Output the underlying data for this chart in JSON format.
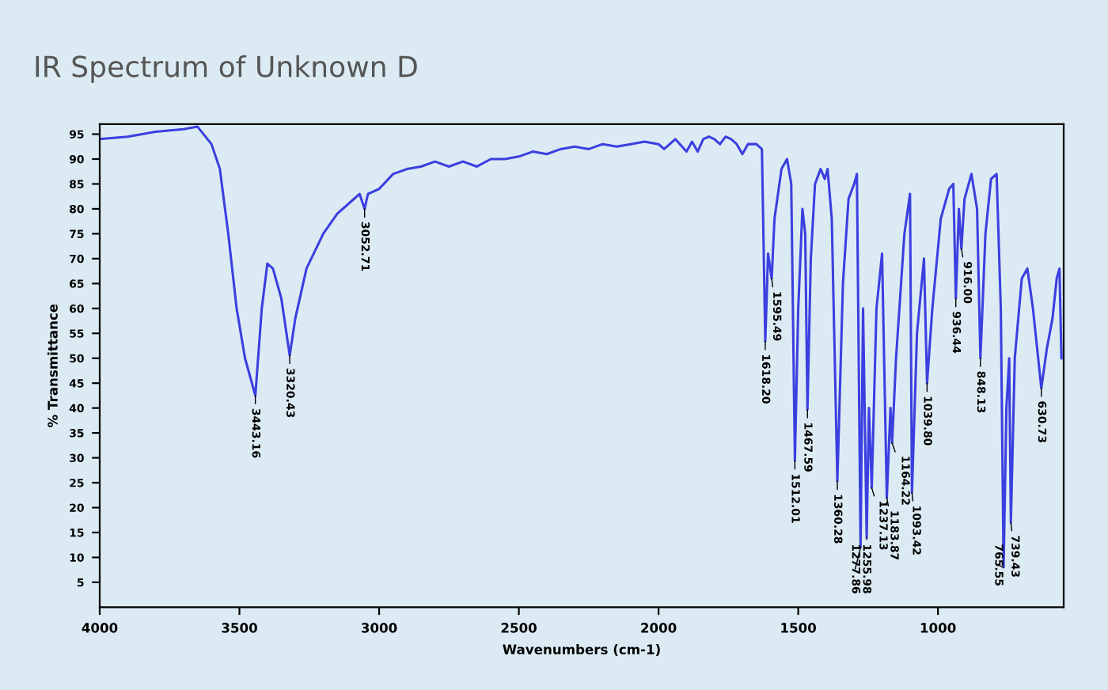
{
  "chart_data": {
    "type": "line",
    "title": "IR Spectrum of Unknown D",
    "xlabel": "Wavenumbers (cm-1)",
    "ylabel": "% Transmittance",
    "xlim": [
      4000,
      550
    ],
    "xticks": [
      4000,
      3500,
      3000,
      2500,
      2000,
      1500,
      1000
    ],
    "ylim": [
      0,
      97
    ],
    "yticks": [
      5,
      10,
      15,
      20,
      25,
      30,
      35,
      40,
      45,
      50,
      55,
      60,
      65,
      70,
      75,
      80,
      85,
      90,
      95
    ],
    "grid": false,
    "legend": false,
    "marker": "none",
    "line_style": "solid",
    "series": [
      {
        "color": "#3b3fe0",
        "x": [
          4000,
          3900,
          3800,
          3700,
          3650,
          3600,
          3570,
          3540,
          3510,
          3480,
          3443,
          3420,
          3400,
          3380,
          3350,
          3320,
          3300,
          3260,
          3200,
          3150,
          3100,
          3070,
          3052,
          3040,
          3000,
          2950,
          2900,
          2850,
          2800,
          2750,
          2700,
          2650,
          2600,
          2550,
          2500,
          2450,
          2400,
          2350,
          2300,
          2250,
          2200,
          2150,
          2100,
          2050,
          2000,
          1980,
          1960,
          1940,
          1900,
          1880,
          1860,
          1840,
          1820,
          1800,
          1780,
          1760,
          1740,
          1720,
          1700,
          1680,
          1650,
          1630,
          1618,
          1608,
          1595,
          1585,
          1560,
          1540,
          1525,
          1512,
          1500,
          1485,
          1475,
          1467,
          1455,
          1440,
          1420,
          1405,
          1395,
          1380,
          1360,
          1340,
          1320,
          1300,
          1290,
          1277,
          1268,
          1255,
          1247,
          1237,
          1220,
          1200,
          1183,
          1170,
          1164,
          1150,
          1120,
          1100,
          1093,
          1075,
          1050,
          1039,
          1020,
          990,
          960,
          945,
          936,
          925,
          916,
          905,
          880,
          860,
          848,
          830,
          810,
          790,
          775,
          765,
          755,
          745,
          739,
          725,
          700,
          680,
          660,
          630,
          610,
          590,
          575,
          565,
          558
        ],
        "values": [
          94,
          94.5,
          95.5,
          96,
          96.5,
          93,
          88,
          75,
          60,
          50,
          42.5,
          60,
          69,
          68,
          62,
          50.6,
          58,
          68,
          75,
          79,
          81.5,
          83,
          80,
          83,
          84,
          87,
          88,
          88.5,
          89.5,
          88.5,
          89.5,
          88.5,
          90,
          90,
          90.5,
          91.5,
          91,
          92,
          92.5,
          92,
          93,
          92.5,
          93,
          93.5,
          93,
          92,
          93,
          94,
          91.5,
          93.5,
          91.5,
          94,
          94.5,
          94,
          93,
          94.5,
          94,
          93,
          91,
          93,
          93,
          92,
          53.4,
          71,
          66,
          78,
          88,
          90,
          85,
          29.4,
          60,
          80,
          75,
          39.7,
          70,
          85,
          88,
          86,
          88,
          78,
          25.3,
          65,
          82,
          85,
          87,
          12,
          60,
          14,
          40,
          24,
          60,
          71,
          22,
          40,
          33,
          50,
          75,
          83,
          23,
          55,
          70,
          45,
          60,
          78,
          84,
          85,
          62,
          80,
          72,
          82,
          87,
          80,
          50,
          75,
          86,
          87,
          60,
          8,
          40,
          50,
          17,
          50,
          66,
          68,
          60,
          44,
          52,
          58,
          66,
          68,
          50
        ]
      }
    ],
    "annotations": [
      {
        "text": "3443.16",
        "x": 3443,
        "y": 42.5
      },
      {
        "text": "3320.43",
        "x": 3320,
        "y": 50.6
      },
      {
        "text": "3052.71",
        "x": 3052,
        "y": 80
      },
      {
        "text": "1618.20",
        "x": 1618,
        "y": 53.4
      },
      {
        "text": "1595.49",
        "x": 1595,
        "y": 66
      },
      {
        "text": "1512.01",
        "x": 1512,
        "y": 29.4
      },
      {
        "text": "1467.59",
        "x": 1467,
        "y": 39.7
      },
      {
        "text": "1360.28",
        "x": 1360,
        "y": 25.3
      },
      {
        "text": "1277.86",
        "x": 1277,
        "y": 12
      },
      {
        "text": "1255.98",
        "x": 1255,
        "y": 14
      },
      {
        "text": "1237.13",
        "x": 1237,
        "y": 24
      },
      {
        "text": "1183.87",
        "x": 1183,
        "y": 22
      },
      {
        "text": "1164.22",
        "x": 1164,
        "y": 33
      },
      {
        "text": "1093.42",
        "x": 1093,
        "y": 23
      },
      {
        "text": "1039.80",
        "x": 1039,
        "y": 45
      },
      {
        "text": "936.44",
        "x": 936,
        "y": 62
      },
      {
        "text": "916.00",
        "x": 916,
        "y": 72
      },
      {
        "text": "848.13",
        "x": 848,
        "y": 50
      },
      {
        "text": "765.55",
        "x": 765,
        "y": 8
      },
      {
        "text": "739.43",
        "x": 739,
        "y": 17
      },
      {
        "text": "630.73",
        "x": 630,
        "y": 44
      }
    ]
  }
}
